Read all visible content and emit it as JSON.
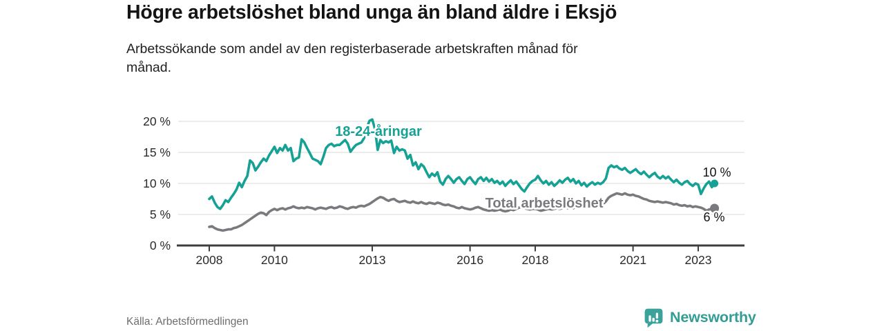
{
  "page": {
    "title": "Högre arbetslöshet bland unga än bland äldre i Eksjö",
    "subtitle": "Arbetssökande som andel av den registerbaserade arbetskraften månad för månad.",
    "source": "Källa: Arbetsförmedlingen",
    "brand": "Newsworthy"
  },
  "colors": {
    "young_series": "#16a195",
    "total_series": "#7a7a7e",
    "axis": "#3d3d3d",
    "grid": "#d8d8d8",
    "end_label_text": "#111111",
    "brand_teal": "#3aa29b"
  },
  "chart_data": {
    "type": "line",
    "title": "Högre arbetslöshet bland unga än bland äldre i Eksjö",
    "subtitle": "Arbetssökande som andel av den registerbaserade arbetskraften månad för månad.",
    "source": "Källa: Arbetsförmedlingen",
    "frequency": "monthly",
    "x_start_year": 2008,
    "x_ticks": [
      {
        "year": 2008,
        "label": "2008"
      },
      {
        "year": 2010,
        "label": "2010"
      },
      {
        "year": 2013,
        "label": "2013"
      },
      {
        "year": 2016,
        "label": "2016"
      },
      {
        "year": 2018,
        "label": "2018"
      },
      {
        "year": 2021,
        "label": "2021"
      },
      {
        "year": 2023,
        "label": "2023"
      }
    ],
    "y_ticks": [
      {
        "value": 0,
        "label": "0 %"
      },
      {
        "value": 5,
        "label": "5 %"
      },
      {
        "value": 10,
        "label": "10 %"
      },
      {
        "value": 15,
        "label": "15 %"
      },
      {
        "value": 20,
        "label": "20 %"
      }
    ],
    "ylim": [
      0,
      20.5
    ],
    "grid": true,
    "legend_position": "inline-labels",
    "series": [
      {
        "name": "18-24-åringar",
        "color": "#16a195",
        "end_label": "10 %",
        "end_value": 10,
        "values": [
          7.5,
          7.9,
          6.9,
          6.2,
          5.9,
          6.5,
          7.3,
          7.0,
          7.7,
          8.3,
          9.0,
          10.1,
          9.4,
          10.4,
          11.2,
          13.7,
          13.3,
          12.1,
          12.7,
          13.4,
          14.0,
          13.6,
          14.5,
          15.2,
          15.9,
          14.9,
          15.7,
          15.3,
          16.2,
          15.3,
          15.7,
          13.6,
          14.0,
          14.2,
          17.1,
          16.6,
          15.7,
          14.9,
          14.0,
          13.8,
          13.6,
          13.1,
          14.3,
          15.7,
          16.2,
          16.4,
          16.0,
          16.2,
          16.2,
          16.6,
          17.0,
          16.4,
          15.1,
          15.7,
          16.2,
          16.4,
          16.6,
          17.3,
          19.0,
          20.1,
          20.3,
          18.8,
          15.4,
          17.0,
          16.5,
          16.8,
          16.6,
          16.9,
          14.9,
          15.9,
          15.3,
          15.5,
          15.3,
          14.0,
          14.6,
          12.9,
          13.4,
          12.3,
          13.1,
          12.7,
          11.8,
          11.0,
          11.6,
          11.2,
          11.8,
          10.3,
          9.8,
          10.7,
          11.2,
          10.7,
          10.1,
          10.7,
          11.0,
          10.4,
          9.9,
          10.7,
          11.0,
          10.4,
          9.9,
          10.7,
          11.0,
          10.4,
          10.9,
          10.3,
          10.7,
          10.1,
          10.4,
          9.9,
          10.3,
          9.6,
          10.1,
          10.5,
          9.9,
          10.3,
          9.7,
          9.1,
          8.7,
          9.4,
          10.0,
          10.4,
          10.6,
          11.2,
          10.5,
          10.0,
          10.4,
          9.8,
          10.2,
          9.6,
          10.0,
          10.5,
          10.1,
          10.6,
          10.9,
          10.3,
          10.7,
          10.0,
          10.4,
          9.7,
          10.1,
          9.5,
          9.9,
          10.2,
          9.8,
          10.1,
          9.9,
          10.2,
          10.8,
          12.5,
          12.9,
          12.6,
          12.8,
          12.4,
          12.2,
          12.5,
          12.0,
          11.7,
          12.0,
          12.3,
          11.8,
          11.5,
          11.9,
          11.4,
          11.0,
          11.4,
          11.7,
          11.1,
          10.8,
          11.2,
          10.8,
          11.1,
          10.6,
          10.2,
          10.6,
          10.1,
          9.8,
          10.2,
          10.4,
          9.9,
          9.6,
          10.0,
          9.8,
          8.3,
          9.2,
          9.9,
          10.3,
          9.4,
          10.0
        ]
      },
      {
        "name": "Total arbetslöshet",
        "color": "#7a7a7e",
        "end_label": "6 %",
        "end_value": 6,
        "values": [
          3.0,
          3.1,
          2.8,
          2.6,
          2.5,
          2.4,
          2.5,
          2.6,
          2.6,
          2.8,
          2.9,
          3.1,
          3.3,
          3.6,
          3.9,
          4.2,
          4.5,
          4.8,
          5.1,
          5.3,
          5.2,
          4.9,
          5.4,
          5.7,
          5.9,
          5.7,
          5.9,
          6.0,
          5.8,
          6.0,
          6.1,
          6.3,
          6.1,
          6.0,
          6.1,
          6.0,
          6.2,
          6.1,
          6.0,
          5.8,
          6.0,
          6.1,
          6.0,
          5.9,
          6.1,
          6.2,
          6.0,
          6.1,
          6.3,
          6.2,
          6.0,
          5.9,
          6.1,
          6.2,
          6.1,
          6.3,
          6.4,
          6.3,
          6.5,
          6.7,
          7.0,
          7.3,
          7.6,
          7.8,
          7.7,
          7.4,
          7.2,
          7.4,
          7.5,
          7.2,
          7.0,
          7.1,
          7.2,
          7.0,
          6.9,
          7.1,
          6.9,
          6.8,
          7.0,
          6.8,
          6.7,
          6.9,
          6.8,
          6.7,
          6.9,
          6.8,
          6.6,
          6.5,
          6.6,
          6.4,
          6.3,
          6.1,
          6.0,
          6.2,
          6.0,
          5.9,
          5.8,
          5.9,
          6.1,
          6.2,
          6.0,
          5.8,
          5.7,
          5.6,
          5.7,
          5.6,
          5.7,
          5.8,
          5.6,
          5.5,
          5.6,
          5.8,
          5.7,
          5.9,
          6.1,
          6.2,
          6.0,
          5.9,
          5.8,
          5.9,
          5.9,
          5.8,
          5.6,
          5.7,
          5.8,
          5.9,
          5.8,
          5.9,
          6.0,
          5.9,
          6.0,
          6.1,
          6.0,
          6.1,
          6.0,
          6.2,
          6.1,
          6.3,
          6.2,
          6.4,
          6.3,
          6.5,
          6.4,
          6.6,
          6.5,
          6.7,
          7.1,
          7.7,
          8.0,
          8.2,
          8.4,
          8.3,
          8.2,
          8.4,
          8.2,
          8.1,
          8.2,
          8.0,
          7.9,
          7.7,
          7.5,
          7.4,
          7.2,
          7.1,
          7.0,
          7.1,
          7.0,
          6.9,
          7.0,
          6.9,
          6.8,
          6.6,
          6.7,
          6.5,
          6.4,
          6.5,
          6.3,
          6.4,
          6.2,
          6.3,
          6.2,
          6.1,
          5.9,
          5.6,
          5.8,
          5.9,
          6.0
        ]
      }
    ]
  }
}
